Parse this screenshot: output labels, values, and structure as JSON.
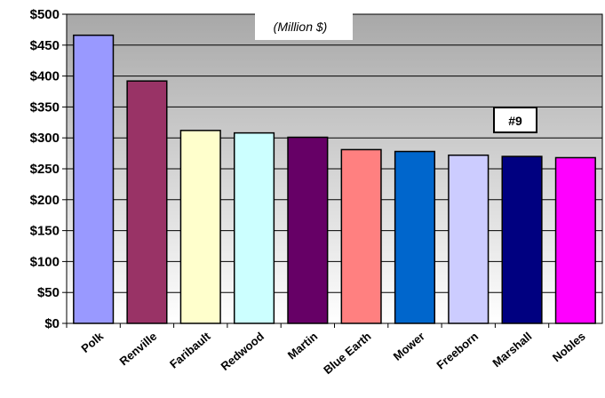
{
  "chart_data": {
    "type": "bar",
    "title": "",
    "xlabel": "",
    "ylabel": "",
    "subtitle": "(Million $)",
    "annotation": "#9",
    "categories": [
      "Polk",
      "Renville",
      "Faribault",
      "Redwood",
      "Martin",
      "Blue Earth",
      "Mower",
      "Freeborn",
      "Marshall",
      "Nobles"
    ],
    "values": [
      466,
      392,
      312,
      308,
      301,
      281,
      278,
      272,
      270,
      268
    ],
    "colors": [
      "#9999ff",
      "#993366",
      "#ffffcc",
      "#ccffff",
      "#660066",
      "#ff8080",
      "#0066cc",
      "#ccccff",
      "#000080",
      "#ff00ff"
    ],
    "ylim": [
      0,
      500
    ],
    "yticks": [
      "$0",
      "$50",
      "$100",
      "$150",
      "$200",
      "$250",
      "$300",
      "$350",
      "$400",
      "$450",
      "$500"
    ],
    "grid": true
  }
}
